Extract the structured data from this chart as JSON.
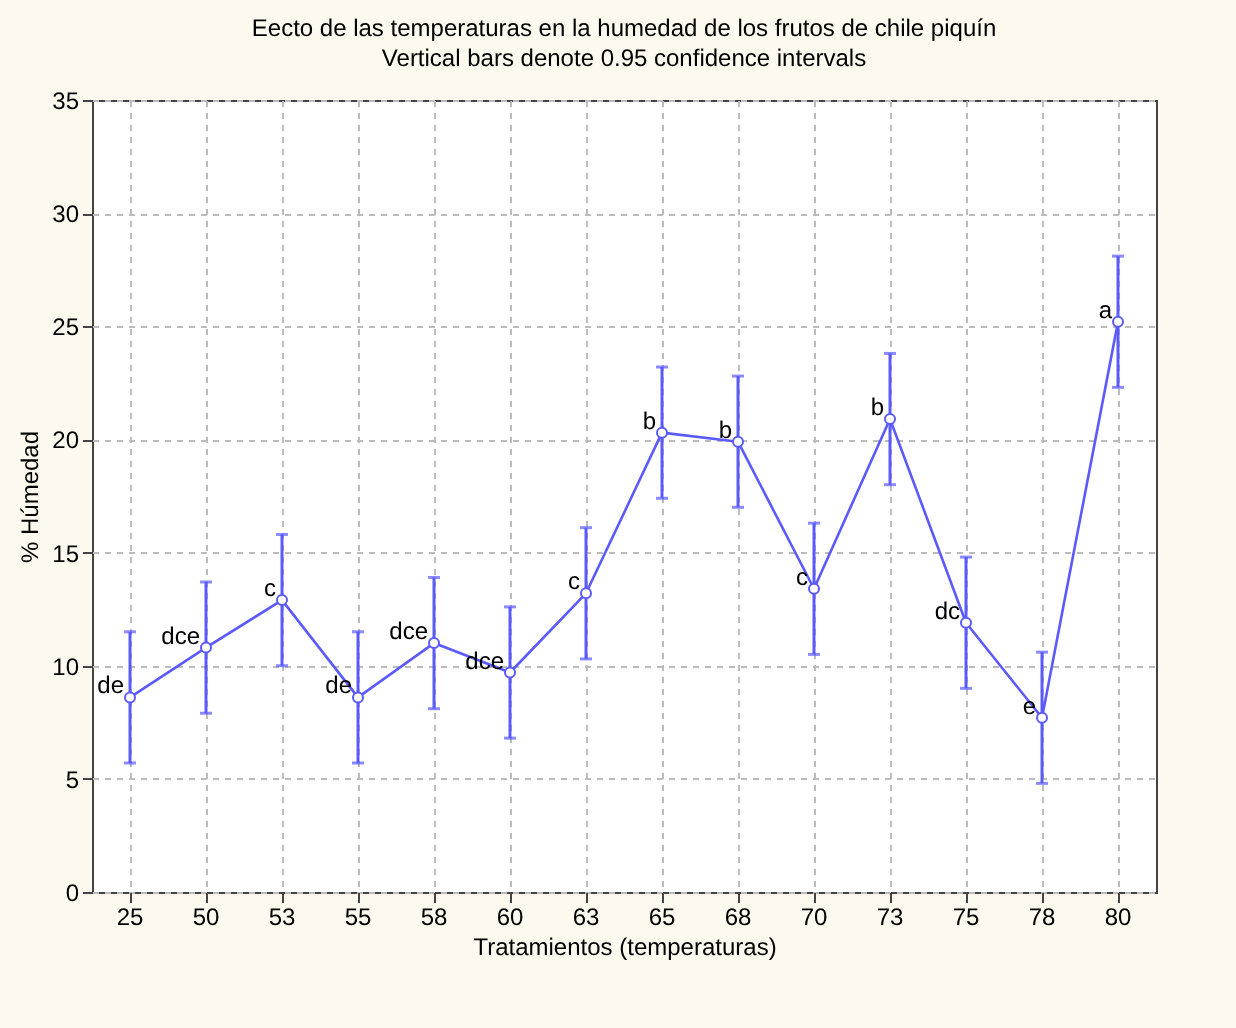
{
  "chart_data": {
    "type": "line",
    "title": "Eecto de las temperaturas en la humedad de los frutos de chile piquín",
    "subtitle": "Vertical bars denote 0.95 confidence intervals",
    "xlabel": "Tratamientos (temperaturas)",
    "ylabel": "% Húmedad",
    "categories": [
      "25",
      "50",
      "53",
      "55",
      "58",
      "60",
      "63",
      "65",
      "68",
      "70",
      "73",
      "75",
      "78",
      "80"
    ],
    "series": [
      {
        "color": "#5a5aff",
        "values": [
          8.6,
          10.8,
          12.9,
          8.6,
          11.0,
          9.7,
          13.2,
          20.3,
          19.9,
          13.4,
          20.9,
          11.9,
          7.7,
          25.2
        ],
        "errors": [
          2.9,
          2.9,
          2.9,
          2.9,
          2.9,
          2.9,
          2.9,
          2.9,
          2.9,
          2.9,
          2.9,
          2.9,
          2.9,
          2.9
        ]
      }
    ],
    "ylim": [
      0,
      35
    ],
    "yticks": [
      0,
      5,
      10,
      15,
      20,
      25,
      30,
      35
    ],
    "grid": true,
    "marker": "circle",
    "line_style": "solid",
    "annotations": [
      {
        "text": "de",
        "x": "25",
        "y": 8.6
      },
      {
        "text": "dce",
        "x": "50",
        "y": 10.8
      },
      {
        "text": "c",
        "x": "53",
        "y": 12.9
      },
      {
        "text": "de",
        "x": "55",
        "y": 8.6
      },
      {
        "text": "dce",
        "x": "58",
        "y": 11.0
      },
      {
        "text": "dce",
        "x": "60",
        "y": 9.7
      },
      {
        "text": "c",
        "x": "63",
        "y": 13.2
      },
      {
        "text": "b",
        "x": "65",
        "y": 20.3
      },
      {
        "text": "b",
        "x": "68",
        "y": 19.9
      },
      {
        "text": "c",
        "x": "70",
        "y": 13.4
      },
      {
        "text": "b",
        "x": "73",
        "y": 20.9
      },
      {
        "text": "dc",
        "x": "75",
        "y": 11.9
      },
      {
        "text": "e",
        "x": "78",
        "y": 7.7
      },
      {
        "text": "a",
        "x": "80",
        "y": 25.2
      }
    ]
  }
}
